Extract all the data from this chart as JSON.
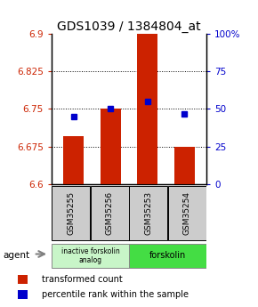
{
  "title": "GDS1039 / 1384804_at",
  "samples": [
    "GSM35255",
    "GSM35256",
    "GSM35253",
    "GSM35254"
  ],
  "red_values": [
    6.695,
    6.75,
    6.9,
    6.675
  ],
  "blue_percentiles": [
    45,
    50,
    55,
    47
  ],
  "ylim": [
    6.6,
    6.9
  ],
  "yticks_left": [
    6.6,
    6.675,
    6.75,
    6.825,
    6.9
  ],
  "yticks_right_labels": [
    "0",
    "25",
    "50",
    "75",
    "100%"
  ],
  "grid_vals": [
    6.825,
    6.75,
    6.675
  ],
  "bar_bottom": 6.6,
  "bar_width": 0.55,
  "group1_label": "inactive forskolin\nanalog",
  "group2_label": "forskolin",
  "group1_color": "#c8f5c8",
  "group2_color": "#44dd44",
  "sample_box_color": "#cccccc",
  "red_color": "#cc2200",
  "blue_color": "#0000cc",
  "title_fontsize": 10,
  "tick_fontsize": 7.5,
  "legend_fontsize": 7
}
